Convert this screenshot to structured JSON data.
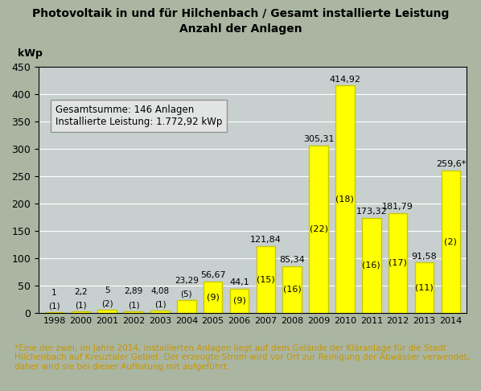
{
  "chart_data": {
    "type": "bar",
    "title": "Photovoltaik in und für Hilchenbach / Gesamt installierte Leistung",
    "subtitle": "Anzahl der Anlagen",
    "y_label": "kWp",
    "categories": [
      "1998",
      "2000",
      "2001",
      "2002",
      "2003",
      "2004",
      "2005",
      "2006",
      "2007",
      "2008",
      "2009",
      "2010",
      "2011",
      "2012",
      "2013",
      "2014"
    ],
    "values": [
      1,
      2.2,
      5,
      2.89,
      4.08,
      23.29,
      56.67,
      44.1,
      121.84,
      85.34,
      305.31,
      414.92,
      173.32,
      181.79,
      91.58,
      259.6
    ],
    "value_labels": [
      "1",
      "2,2",
      "5",
      "2,89",
      "4,08",
      "23,29",
      "56,67",
      "44,1",
      "121,84",
      "85,34",
      "305,31",
      "414,92",
      "173,32",
      "181,79",
      "91,58",
      "259,6*"
    ],
    "counts": [
      1,
      1,
      2,
      1,
      1,
      5,
      9,
      9,
      15,
      16,
      22,
      18,
      16,
      17,
      11,
      2
    ],
    "count_labels": [
      "(1)",
      "(1)",
      "(2)",
      "(1)",
      "(1)",
      "(5)",
      "(9)",
      "(9)",
      "(15)",
      "(16)",
      "(22)",
      "(18)",
      "(16)",
      "(17)",
      "(11)",
      "(2)"
    ],
    "color": "#ffff00",
    "data_labels": true,
    "ylim": [
      0,
      450
    ],
    "yticks": [
      0,
      50,
      100,
      150,
      200,
      250,
      300,
      350,
      400,
      450
    ],
    "grid": true,
    "annotations": [
      "Gesamtsumme: 146 Anlagen\nInstallierte Leistung: 1.772,92 kWp",
      "*Eine der zwei, im Jahre 2014, installierten Anlagen liegt auf dem Gelände der Kläranlage für die Stadt Hilchenbach auf Kreuztaler Gebiet. Der erzeugte Strom wird vor Ort zur Reinigung der Abwässer verwendet, daher wird sie bei dieser Auflistung mit aufgeführt."
    ]
  }
}
